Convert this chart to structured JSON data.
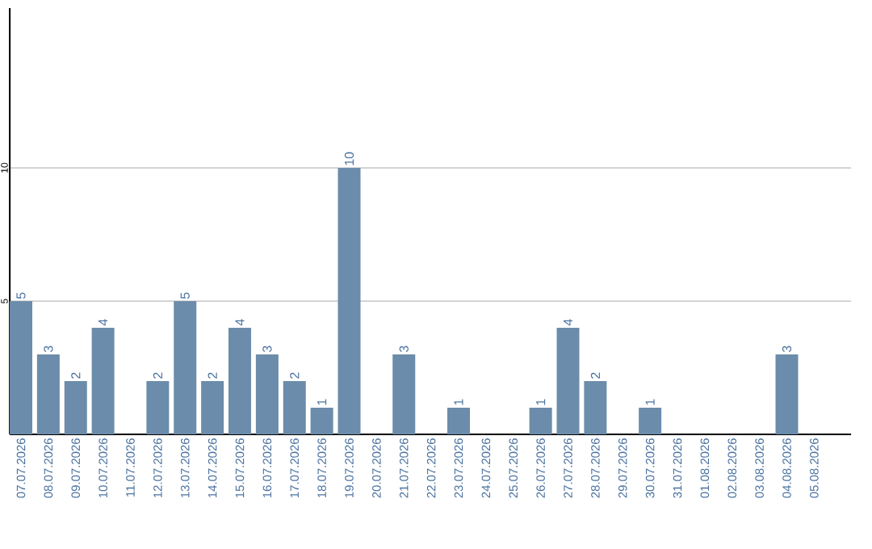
{
  "chart_data": {
    "type": "bar",
    "categories": [
      "07.07.2026",
      "08.07.2026",
      "09.07.2026",
      "10.07.2026",
      "11.07.2026",
      "12.07.2026",
      "13.07.2026",
      "14.07.2026",
      "15.07.2026",
      "16.07.2026",
      "17.07.2026",
      "18.07.2026",
      "19.07.2026",
      "20.07.2026",
      "21.07.2026",
      "22.07.2026",
      "23.07.2026",
      "24.07.2026",
      "25.07.2026",
      "26.07.2026",
      "27.07.2026",
      "28.07.2026",
      "29.07.2026",
      "30.07.2026",
      "31.07.2026",
      "01.08.2026",
      "02.08.2026",
      "03.08.2026",
      "04.08.2026",
      "05.08.2026"
    ],
    "values": [
      5,
      3,
      2,
      4,
      0,
      2,
      5,
      2,
      4,
      3,
      2,
      1,
      10,
      0,
      3,
      0,
      1,
      0,
      0,
      1,
      4,
      2,
      0,
      1,
      0,
      0,
      0,
      0,
      3,
      0
    ],
    "value_labels": [
      "5",
      "3",
      "2",
      "4",
      null,
      "2",
      "5",
      "2",
      "4",
      "3",
      "2",
      "1",
      "10",
      null,
      "3",
      null,
      "1",
      null,
      null,
      "1",
      "4",
      "2",
      null,
      "1",
      null,
      null,
      null,
      null,
      "3",
      null
    ],
    "color": "#6b8caa",
    "ylim": [
      0,
      16
    ],
    "yticks": [
      5,
      10
    ],
    "grid": "y"
  }
}
